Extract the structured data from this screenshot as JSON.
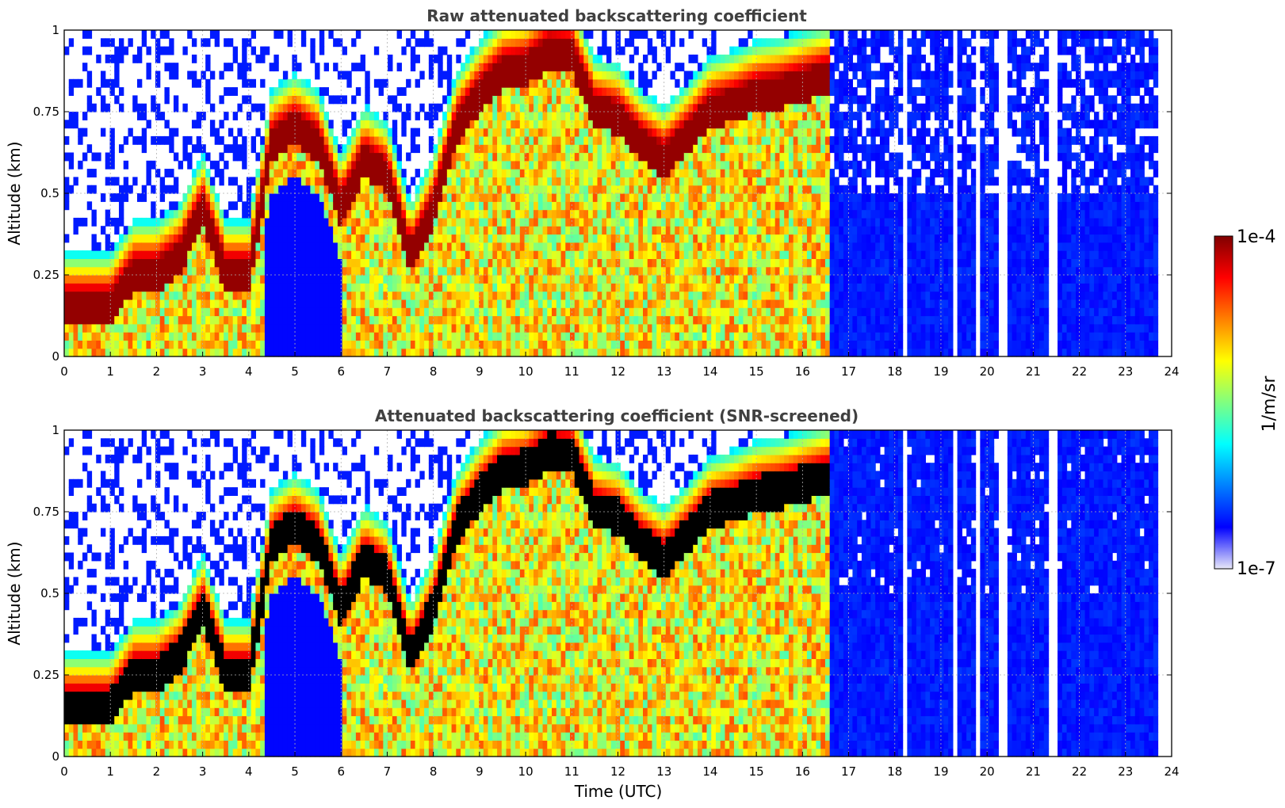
{
  "chart_data": [
    {
      "type": "heatmap",
      "title": "Raw attenuated backscattering coefficient",
      "xlabel": "",
      "ylabel": "Altitude (km)",
      "xlim": [
        0,
        24
      ],
      "ylim": [
        0,
        1
      ],
      "xticks": [
        "0",
        "1",
        "2",
        "3",
        "4",
        "5",
        "6",
        "7",
        "8",
        "9",
        "10",
        "11",
        "12",
        "13",
        "14",
        "15",
        "16",
        "17",
        "18",
        "19",
        "20",
        "21",
        "22",
        "23",
        "24"
      ],
      "yticks": [
        "0",
        "0.25",
        "0.5",
        "0.75",
        "1"
      ],
      "grid": true,
      "data_end_time": 23.7,
      "screened": false,
      "cloud_base_profile": {
        "time": [
          0,
          1,
          1.5,
          2,
          2.5,
          3,
          3.5,
          4,
          4.5,
          5,
          5.5,
          6,
          6.5,
          7,
          7.5,
          8,
          8.5,
          9,
          9.5,
          10,
          10.5,
          11,
          11.5,
          12,
          12.5,
          13,
          13.5,
          14,
          14.5,
          15,
          15.5,
          16,
          16.5
        ],
        "altitude_km": [
          0.2,
          0.2,
          0.3,
          0.3,
          0.35,
          0.5,
          0.3,
          0.3,
          0.7,
          0.75,
          0.7,
          0.5,
          0.65,
          0.6,
          0.35,
          0.5,
          0.75,
          0.85,
          0.92,
          0.93,
          0.98,
          0.97,
          0.8,
          0.78,
          0.7,
          0.65,
          0.72,
          0.8,
          0.82,
          0.85,
          0.86,
          0.88,
          0.9
        ]
      },
      "column_gaps_time": [
        18.2,
        19.3,
        19.75,
        20.3,
        20.4,
        21.4,
        21.5
      ]
    },
    {
      "type": "heatmap",
      "title": "Attenuated backscattering coefficient (SNR-screened)",
      "xlabel": "Time (UTC)",
      "ylabel": "Altitude (km)",
      "xlim": [
        0,
        24
      ],
      "ylim": [
        0,
        1
      ],
      "xticks": [
        "0",
        "1",
        "2",
        "3",
        "4",
        "5",
        "6",
        "7",
        "8",
        "9",
        "10",
        "11",
        "12",
        "13",
        "14",
        "15",
        "16",
        "17",
        "18",
        "19",
        "20",
        "21",
        "22",
        "23",
        "24"
      ],
      "yticks": [
        "0",
        "0.25",
        "0.5",
        "0.75",
        "1"
      ],
      "grid": true,
      "data_end_time": 23.7,
      "screened": true,
      "column_gaps_time": [
        18.2,
        19.3,
        19.75,
        20.3,
        20.4,
        21.4,
        21.5
      ]
    }
  ],
  "colorbar": {
    "label": "1/m/sr",
    "max_label": "1e-4",
    "min_label": "1e-7",
    "scale": "log",
    "range": [
      1e-07,
      0.0001
    ],
    "colormap": [
      "#e8e8f8",
      "#0000ff",
      "#0080ff",
      "#00ffff",
      "#80ff80",
      "#ffff00",
      "#ff8000",
      "#ff0000",
      "#800000"
    ]
  }
}
